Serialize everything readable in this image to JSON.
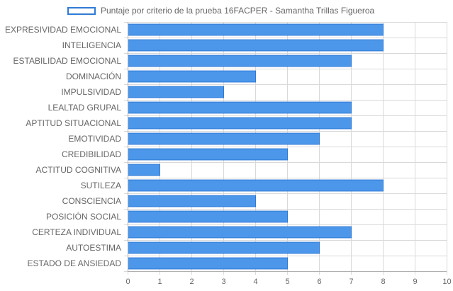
{
  "chart_data": {
    "type": "bar",
    "orientation": "horizontal",
    "legend_position": "top-center",
    "grid": true,
    "colors": {
      "bar_fill": "#4c97ea",
      "bar_stroke": "#2f7ad6",
      "grid": "#d9d9d9",
      "text": "#666666"
    },
    "series": [
      {
        "name": "Puntaje por criterio de la prueba 16FACPER - Samantha Trillas Figueroa",
        "values": [
          8,
          8,
          7,
          4,
          3,
          7,
          7,
          6,
          5,
          1,
          8,
          4,
          5,
          7,
          6,
          5
        ]
      }
    ],
    "categories": [
      "EXPRESIVIDAD EMOCIONAL",
      "INTELIGENCIA",
      "ESTABILIDAD EMOCIONAL",
      "DOMINACIÓN",
      "IMPULSIVIDAD",
      "LEALTAD GRUPAL",
      "APTITUD SITUACIONAL",
      "EMOTIVIDAD",
      "CREDIBILIDAD",
      "ACTITUD COGNITIVA",
      "SUTILEZA",
      "CONSCIENCIA",
      "POSICIÓN SOCIAL",
      "CERTEZA INDIVIDUAL",
      "AUTOESTIMA",
      "ESTADO DE ANSIEDAD"
    ],
    "xlim": [
      0,
      10
    ],
    "xticks": [
      "0",
      "1",
      "2",
      "3",
      "4",
      "5",
      "6",
      "7",
      "8",
      "9",
      "10"
    ]
  }
}
